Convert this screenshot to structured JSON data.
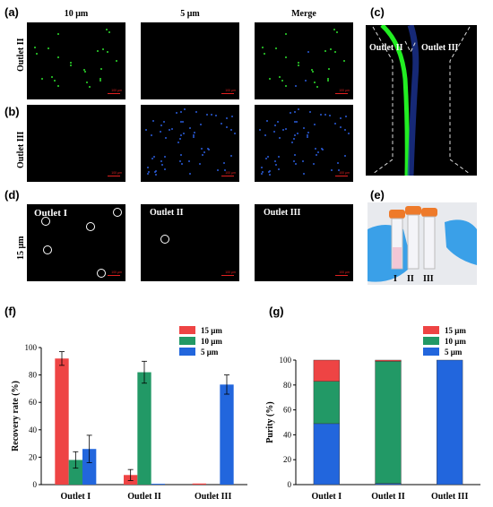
{
  "micrographs": {
    "panel_labels": [
      "(a)",
      "(b)",
      "(c)",
      "(d)",
      "(e)",
      "(f)",
      "(g)"
    ],
    "col_headers": [
      "10 μm",
      "5 μm",
      "Merge"
    ],
    "row_a_label": "Outlet II",
    "row_b_label": "Outlet III",
    "row_d_label": "15 μm",
    "panel_d_titles": [
      "Outlet  I",
      "Outlet II",
      "Outlet III"
    ],
    "panel_c_labels": [
      "Outlet II",
      "Outlet III"
    ],
    "panel_e_labels": [
      "I",
      "II",
      "III"
    ],
    "scale_text": "100 μm",
    "colors": {
      "green": "#2ee02e",
      "blue": "#2a5bd8",
      "red": "#e02020"
    }
  },
  "chart_data": [
    {
      "type": "bar",
      "panel": "(f)",
      "ylabel": "Recovery rate  (%)",
      "categories": [
        "Outlet I",
        "Outlet II",
        "Outlet III"
      ],
      "ylim": [
        0,
        100
      ],
      "yticks": [
        0,
        20,
        40,
        60,
        80,
        100
      ],
      "legend_position": "top-right",
      "series": [
        {
          "name": "15 μm",
          "color": "#ee4444",
          "values": [
            92,
            7,
            0.8
          ],
          "errors": [
            5,
            4,
            0
          ]
        },
        {
          "name": "10 μm",
          "color": "#229966",
          "values": [
            18,
            82,
            0
          ],
          "errors": [
            6,
            8,
            0
          ]
        },
        {
          "name": "5  μm",
          "color": "#2266dd",
          "values": [
            26,
            0.6,
            73
          ],
          "errors": [
            10,
            0,
            7
          ]
        }
      ]
    },
    {
      "type": "bar",
      "stacked": true,
      "panel": "(g)",
      "ylabel": "Purity  (%)",
      "categories": [
        "Outlet I",
        "Outlet II",
        "Outlet III"
      ],
      "ylim": [
        0,
        100
      ],
      "yticks": [
        0,
        20,
        40,
        60,
        80,
        100
      ],
      "legend_position": "top-right",
      "series": [
        {
          "name": "5  μm",
          "color": "#2266dd",
          "values": [
            49,
            1,
            100
          ]
        },
        {
          "name": "10 μm",
          "color": "#229966",
          "values": [
            34,
            98,
            0
          ]
        },
        {
          "name": "15 μm",
          "color": "#ee4444",
          "values": [
            17,
            1,
            0
          ]
        }
      ]
    }
  ]
}
